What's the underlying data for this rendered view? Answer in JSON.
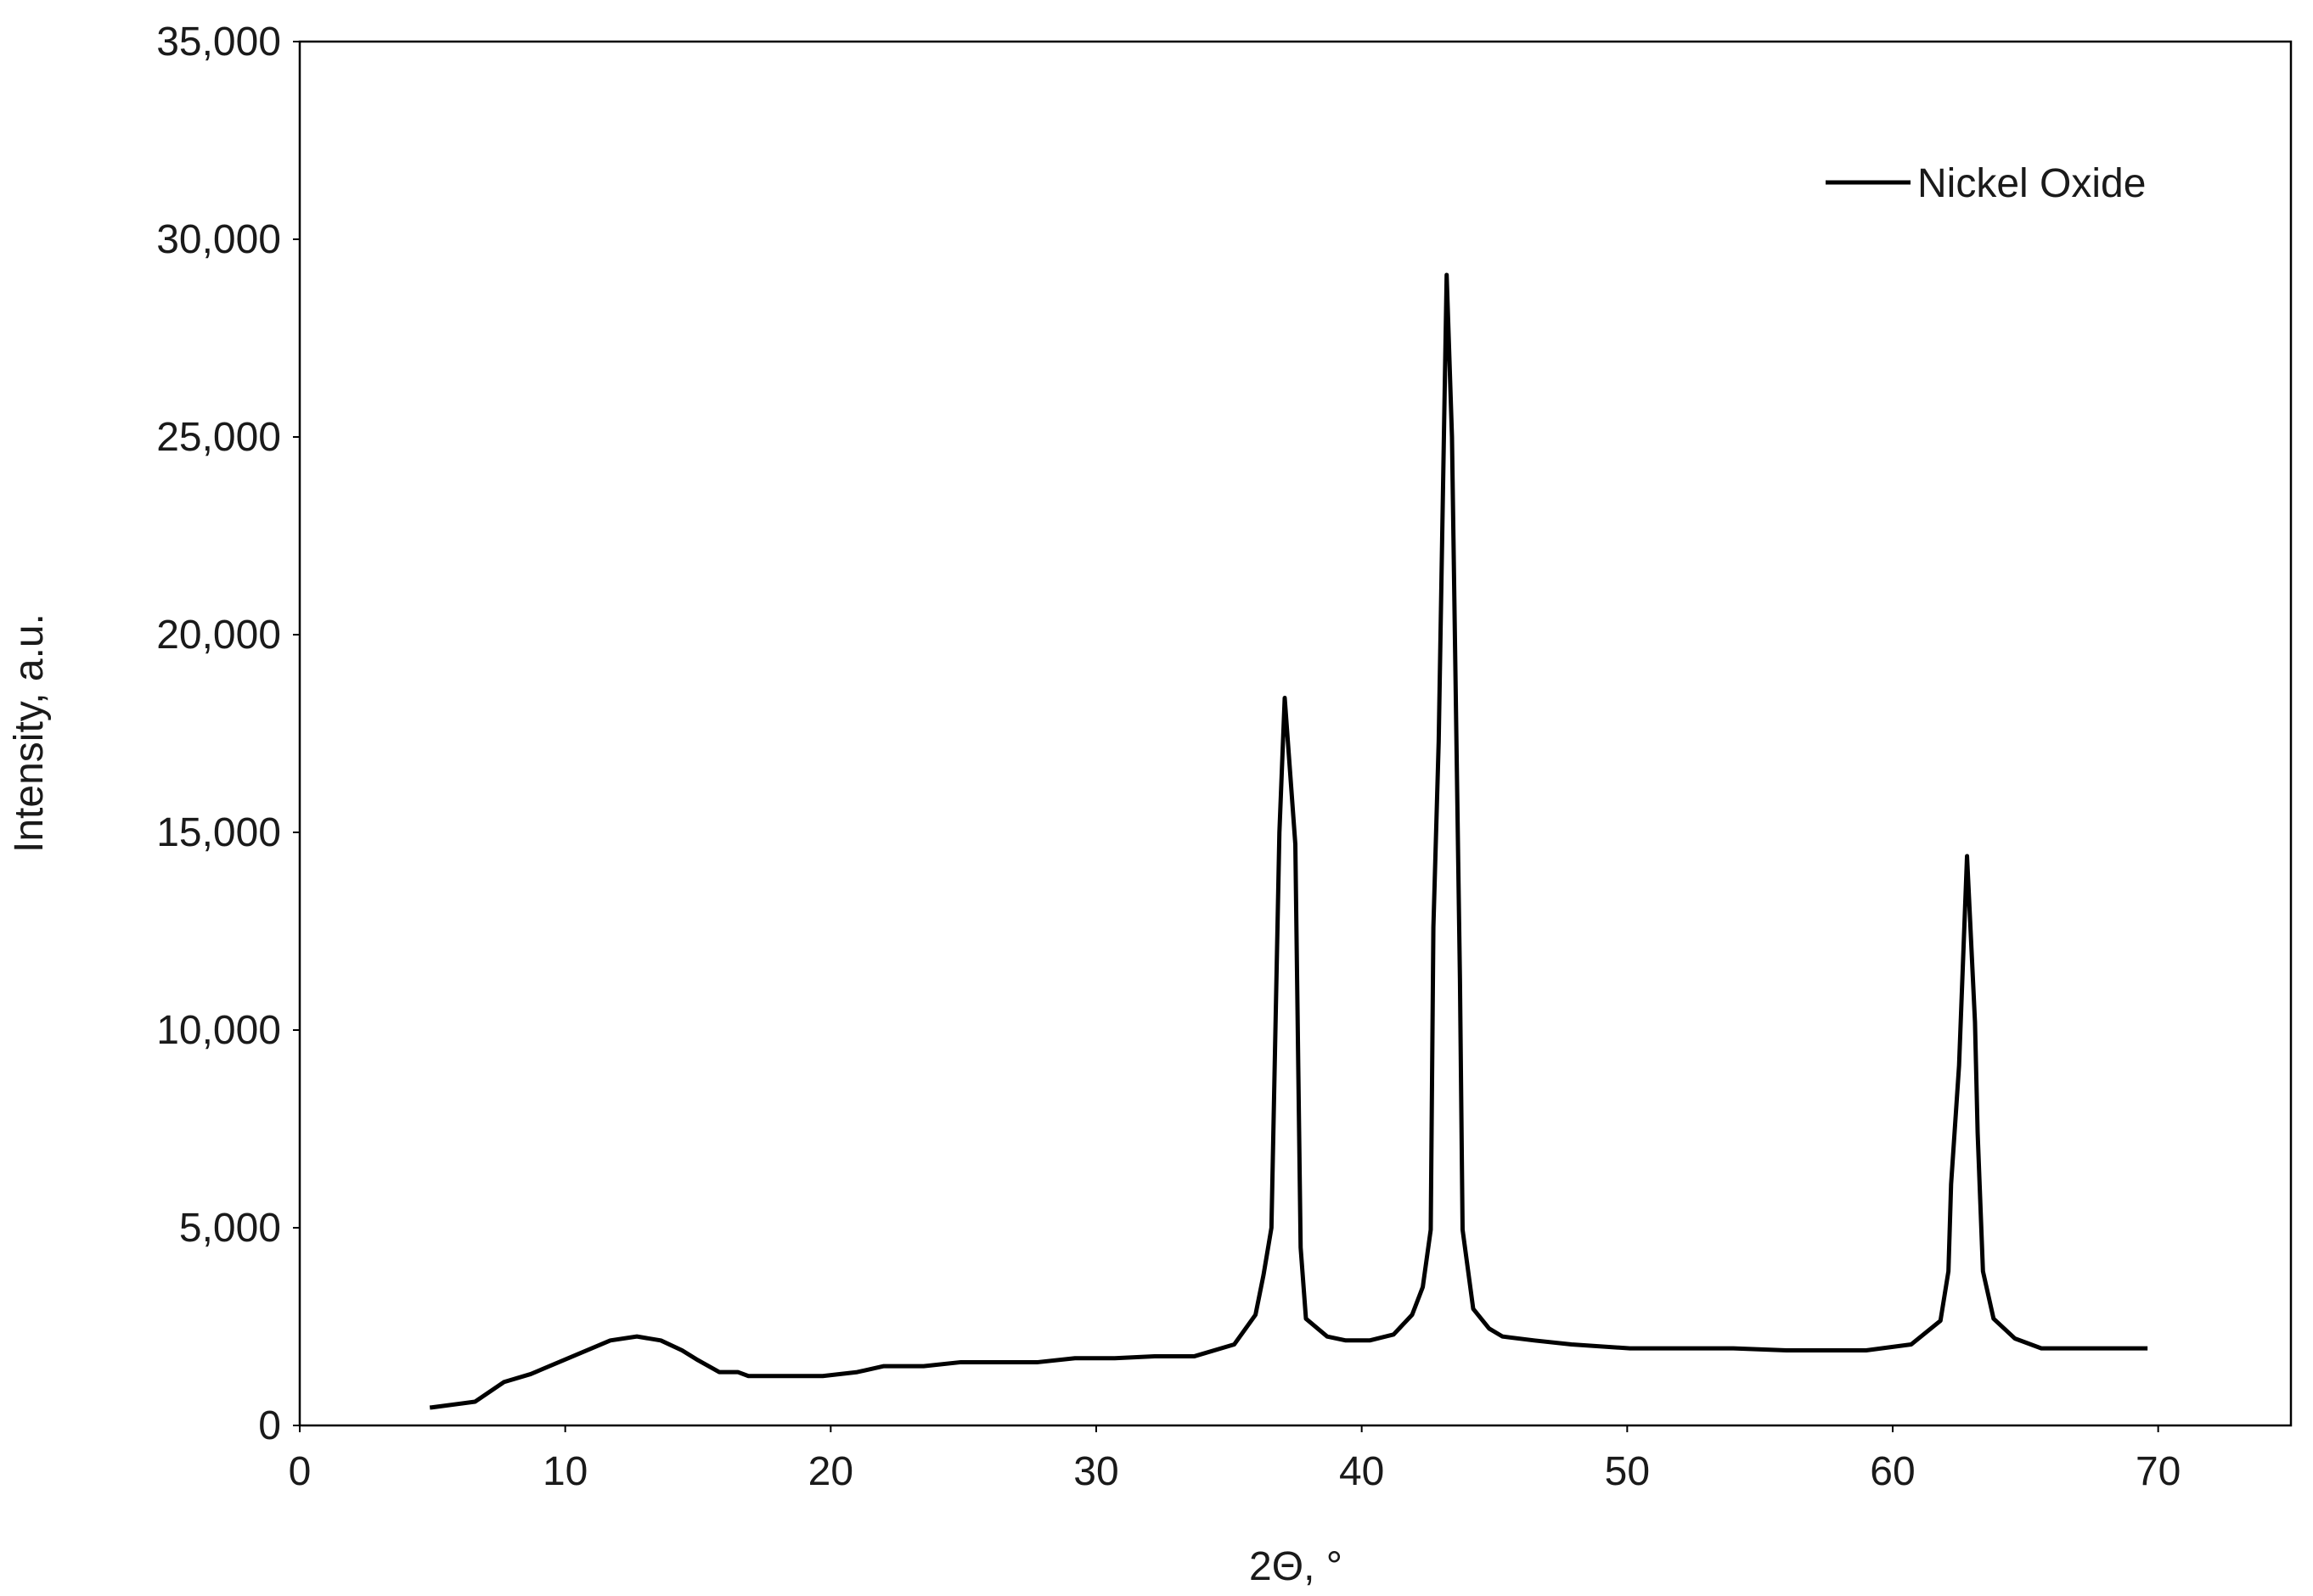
{
  "chart_data": {
    "type": "line",
    "x_label": "2Θ, °",
    "y_label": "Intensity, a.u.",
    "xlim": [
      0,
      75
    ],
    "xticks": [
      0,
      10,
      20,
      30,
      40,
      50,
      60,
      70
    ],
    "ylim": [
      0,
      35000
    ],
    "yticks": [
      0,
      {
        "value": 5000,
        "label": "5,000"
      },
      {
        "value": 10000,
        "label": "10,000"
      },
      {
        "value": 15000,
        "label": "15,000"
      },
      {
        "value": 20000,
        "label": "20,000"
      },
      {
        "value": 25000,
        "label": "25,000"
      },
      {
        "value": 30000,
        "label": "30,000"
      },
      {
        "value": 35000,
        "label": "35,000"
      }
    ],
    "legend": "top-right",
    "x": [
      4.9,
      6.6,
      7.7,
      8.7,
      11.7,
      12.7,
      13.6,
      14.4,
      15.0,
      15.8,
      16.5,
      16.9,
      19.7,
      21.0,
      22.0,
      23.5,
      24.9,
      27.8,
      29.2,
      30.7,
      32.2,
      33.7,
      35.2,
      36.0,
      36.3,
      36.6,
      36.9,
      37.1,
      37.5,
      37.7,
      37.9,
      38.7,
      39.4,
      40.3,
      41.2,
      41.9,
      42.3,
      42.6,
      42.7,
      42.9,
      43.2,
      43.4,
      43.7,
      43.8,
      44.2,
      44.8,
      45.3,
      46.5,
      47.9,
      50.1,
      54.0,
      56.0,
      59.0,
      60.7,
      61.8,
      62.1,
      62.2,
      62.5,
      62.8,
      63.1,
      63.2,
      63.4,
      63.8,
      64.6,
      65.6,
      69.6
    ],
    "series": [
      {
        "name": "Nickel Oxide",
        "color": "#000000",
        "values": [
          450,
          600,
          1100,
          1300,
          2150,
          2250,
          2150,
          1900,
          1650,
          1350,
          1350,
          1250,
          1250,
          1350,
          1500,
          1500,
          1600,
          1600,
          1700,
          1700,
          1750,
          1750,
          2050,
          2800,
          3800,
          5000,
          15000,
          18400,
          14700,
          4500,
          2700,
          2250,
          2150,
          2150,
          2300,
          2800,
          3500,
          4950,
          12600,
          17300,
          29100,
          25000,
          11300,
          4950,
          2950,
          2450,
          2250,
          2150,
          2050,
          1950,
          1950,
          1900,
          1900,
          2050,
          2650,
          3900,
          6100,
          9100,
          14400,
          10200,
          7400,
          3900,
          2700,
          2200,
          1950,
          1950
        ]
      }
    ]
  }
}
